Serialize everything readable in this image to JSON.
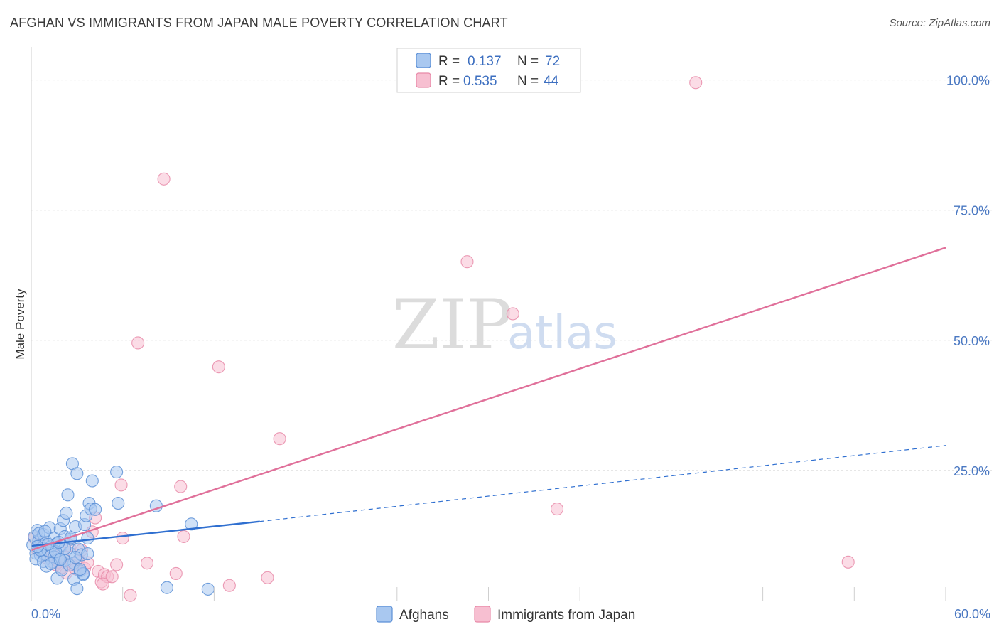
{
  "title": "AFGHAN VS IMMIGRANTS FROM JAPAN MALE POVERTY CORRELATION CHART",
  "source": "Source: ZipAtlas.com",
  "watermark": {
    "zip": "ZIP",
    "atlas": "atlas"
  },
  "colors": {
    "blue_fill": "#a9c8f0",
    "blue_stroke": "#5b8fd6",
    "blue_line": "#2f6fd0",
    "pink_fill": "#f7bfd1",
    "pink_stroke": "#e889a8",
    "pink_line": "#e0709a",
    "grid": "#d8d8d8",
    "tick_text": "#4a78c2"
  },
  "legend": {
    "r_label": "R =",
    "n_label": "N =",
    "series": [
      {
        "r": "0.137",
        "n": "72"
      },
      {
        "r": "0.535",
        "n": "44"
      }
    ]
  },
  "chart_data": {
    "type": "scatter",
    "title": "AFGHAN VS IMMIGRANTS FROM JAPAN MALE POVERTY CORRELATION CHART",
    "xlabel": "",
    "ylabel": "Male Poverty",
    "xlim": [
      0,
      60
    ],
    "ylim": [
      0,
      105
    ],
    "x_tick_labels": [
      "0.0%",
      "60.0%"
    ],
    "y_ticks": [
      25,
      50,
      75,
      100
    ],
    "y_tick_labels": [
      "25.0%",
      "50.0%",
      "75.0%",
      "100.0%"
    ],
    "legend_position": "top-center",
    "series": [
      {
        "name": "Afghans",
        "color": "#5b8fd6",
        "points": [
          [
            0.1,
            10.7
          ],
          [
            0.2,
            12.3
          ],
          [
            0.3,
            9.1
          ],
          [
            0.4,
            13.5
          ],
          [
            0.5,
            11.5
          ],
          [
            0.6,
            8.7
          ],
          [
            0.7,
            10.1
          ],
          [
            0.8,
            12.7
          ],
          [
            0.9,
            8.9
          ],
          [
            1.0,
            11.2
          ],
          [
            1.1,
            9.6
          ],
          [
            1.2,
            14.0
          ],
          [
            1.3,
            10.4
          ],
          [
            1.4,
            7.4
          ],
          [
            1.5,
            12.0
          ],
          [
            1.6,
            9.3
          ],
          [
            1.7,
            11.0
          ],
          [
            1.8,
            8.0
          ],
          [
            1.9,
            13.8
          ],
          [
            2.0,
            10.6
          ],
          [
            2.1,
            15.4
          ],
          [
            2.2,
            12.3
          ],
          [
            2.3,
            16.8
          ],
          [
            2.4,
            20.3
          ],
          [
            2.5,
            9.2
          ],
          [
            2.6,
            11.8
          ],
          [
            2.7,
            26.3
          ],
          [
            2.8,
            7.2
          ],
          [
            2.9,
            14.2
          ],
          [
            3.0,
            24.4
          ],
          [
            3.1,
            9.9
          ],
          [
            3.2,
            5.7
          ],
          [
            3.3,
            8.8
          ],
          [
            3.4,
            5.0
          ],
          [
            3.5,
            14.6
          ],
          [
            3.6,
            16.3
          ],
          [
            3.7,
            12.0
          ],
          [
            3.8,
            18.7
          ],
          [
            3.9,
            17.6
          ],
          [
            4.0,
            23.0
          ],
          [
            4.2,
            17.5
          ],
          [
            5.6,
            24.7
          ],
          [
            5.7,
            18.7
          ],
          [
            8.2,
            18.2
          ],
          [
            10.5,
            14.7
          ],
          [
            0.3,
            8.0
          ],
          [
            0.8,
            7.5
          ],
          [
            1.0,
            6.6
          ],
          [
            1.5,
            8.4
          ],
          [
            1.7,
            4.3
          ],
          [
            2.0,
            5.9
          ],
          [
            2.2,
            7.7
          ],
          [
            2.5,
            6.8
          ],
          [
            2.8,
            4.1
          ],
          [
            3.0,
            2.3
          ],
          [
            3.4,
            5.2
          ],
          [
            3.7,
            9.0
          ],
          [
            0.5,
            12.9
          ],
          [
            0.9,
            13.3
          ],
          [
            1.3,
            7.1
          ],
          [
            2.6,
            12.1
          ],
          [
            2.2,
            10.0
          ],
          [
            1.6,
            9.4
          ],
          [
            0.6,
            9.7
          ],
          [
            1.8,
            11.2
          ],
          [
            3.2,
            6.0
          ],
          [
            2.9,
            8.3
          ],
          [
            1.1,
            10.8
          ],
          [
            0.4,
            10.4
          ],
          [
            8.9,
            2.5
          ],
          [
            11.6,
            2.2
          ],
          [
            1.9,
            7.9
          ]
        ]
      },
      {
        "name": "Immigrants from Japan",
        "color": "#e889a8",
        "points": [
          [
            0.2,
            12.0
          ],
          [
            0.4,
            9.8
          ],
          [
            0.7,
            11.2
          ],
          [
            1.0,
            8.2
          ],
          [
            1.3,
            9.5
          ],
          [
            1.6,
            6.9
          ],
          [
            1.8,
            7.4
          ],
          [
            2.1,
            8.4
          ],
          [
            2.3,
            5.3
          ],
          [
            2.5,
            10.6
          ],
          [
            2.7,
            6.8
          ],
          [
            2.9,
            6.1
          ],
          [
            3.1,
            7.8
          ],
          [
            3.3,
            9.7
          ],
          [
            3.5,
            6.2
          ],
          [
            3.7,
            7.3
          ],
          [
            4.0,
            13.2
          ],
          [
            4.2,
            15.9
          ],
          [
            4.4,
            5.6
          ],
          [
            4.6,
            3.6
          ],
          [
            4.8,
            5.0
          ],
          [
            5.0,
            4.6
          ],
          [
            5.3,
            4.6
          ],
          [
            5.6,
            6.9
          ],
          [
            5.9,
            22.2
          ],
          [
            6.0,
            12.0
          ],
          [
            6.5,
            1.0
          ],
          [
            7.0,
            49.5
          ],
          [
            7.6,
            7.2
          ],
          [
            8.7,
            81.0
          ],
          [
            9.5,
            5.2
          ],
          [
            9.8,
            21.9
          ],
          [
            10.0,
            12.3
          ],
          [
            12.3,
            44.9
          ],
          [
            13.0,
            2.9
          ],
          [
            15.5,
            4.4
          ],
          [
            16.3,
            31.1
          ],
          [
            28.6,
            65.1
          ],
          [
            31.6,
            55.1
          ],
          [
            34.5,
            17.6
          ],
          [
            43.6,
            99.5
          ],
          [
            53.6,
            7.4
          ],
          [
            4.7,
            3.2
          ],
          [
            2.0,
            6.3
          ]
        ]
      }
    ],
    "trend_lines": [
      {
        "series": "Afghans",
        "style": "solid",
        "x": [
          0,
          15
        ],
        "y": [
          10.5,
          15.2
        ]
      },
      {
        "series": "Afghans",
        "style": "dashed",
        "x": [
          15,
          60
        ],
        "y": [
          15.2,
          29.8
        ]
      },
      {
        "series": "Immigrants from Japan",
        "style": "solid",
        "x": [
          0,
          60
        ],
        "y": [
          9.7,
          67.8
        ]
      }
    ]
  },
  "bottom_legend": [
    {
      "label": "Afghans"
    },
    {
      "label": "Immigrants from Japan"
    }
  ]
}
